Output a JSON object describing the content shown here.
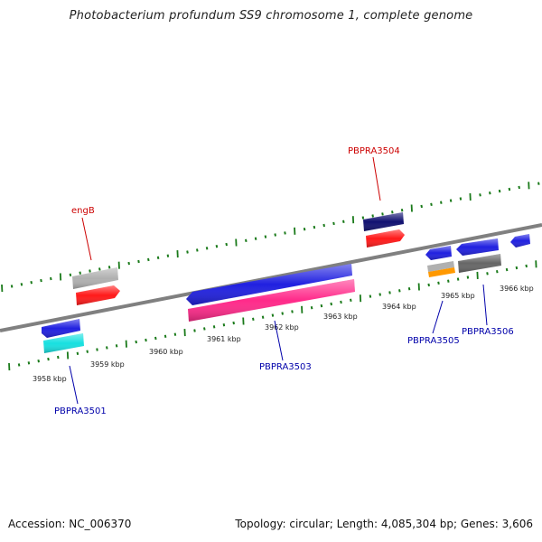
{
  "title": "Photobacterium profundum SS9 chromosome 1, complete genome",
  "accession_text": "Accession: NC_006370",
  "summary_text": "Topology: circular; Length: 4,085,304 bp; Genes: 3,606",
  "scale_labels": [
    "3958 kbp",
    "3959 kbp",
    "3960 kbp",
    "3961 kbp",
    "3962 kbp",
    "3963 kbp",
    "3964 kbp",
    "3965 kbp",
    "3966 kbp"
  ],
  "gene_labels": [
    {
      "text": "engB",
      "color": "#cc0000"
    },
    {
      "text": "PBPRA3504",
      "color": "#cc0000"
    },
    {
      "text": "PBPRA3501",
      "color": "#0000aa"
    },
    {
      "text": "PBPRA3503",
      "color": "#0000aa"
    },
    {
      "text": "PBPRA3505",
      "color": "#0000aa"
    },
    {
      "text": "PBPRA3506",
      "color": "#0000aa"
    }
  ],
  "colors": {
    "backbone": "#808080",
    "tick": "#1a7a1a",
    "forward_gene": "#2020e0",
    "rna": "#ff1a1a",
    "pseudo": "#b0b0b0",
    "misc": "#ff2a8a",
    "cyan": "#17e0e0",
    "orange": "#ff9900",
    "navy": "#101070",
    "dark_gray": "#666666"
  }
}
